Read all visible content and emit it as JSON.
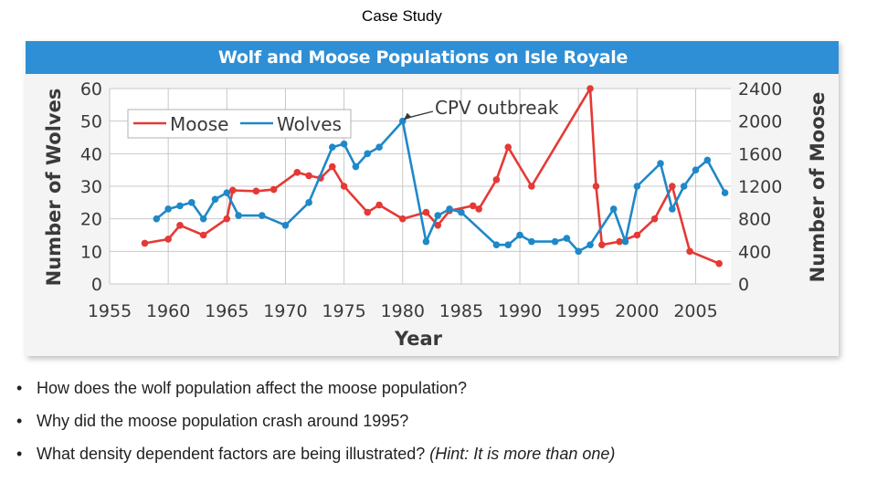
{
  "slide": {
    "title": "Case Study",
    "questions": [
      "How does the wolf population affect the moose population?",
      "Why did the moose population crash around 1995?",
      "What density dependent factors are being illustrated?"
    ],
    "hint": "(Hint: It is more than one)",
    "bullet_glyph": "•"
  },
  "chart_data": {
    "type": "line",
    "title": "Wolf and  Moose Populations on Isle Royale",
    "xlabel": "Year",
    "ylabel_left": "Number of Wolves",
    "ylabel_right": "Number of Moose",
    "xlim": [
      1955,
      2008
    ],
    "x_ticks": [
      1955,
      1960,
      1965,
      1970,
      1975,
      1980,
      1985,
      1990,
      1995,
      2000,
      2005
    ],
    "ylim_left": [
      0,
      60
    ],
    "y_ticks_left": [
      0,
      10,
      20,
      30,
      40,
      50,
      60
    ],
    "ylim_right": [
      0,
      2400
    ],
    "y_ticks_right": [
      0,
      400,
      800,
      1200,
      1600,
      2000,
      2400
    ],
    "grid": true,
    "legend_position": "top-left",
    "annotation": {
      "text": "CPV outbreak",
      "x": 1980,
      "y": 50,
      "axis": "left"
    },
    "series": [
      {
        "name": "Moose",
        "axis": "right",
        "color": "#e53935",
        "x": [
          1958,
          1960,
          1961,
          1963,
          1965,
          1965.5,
          1967.5,
          1969,
          1971,
          1972,
          1973,
          1974,
          1975,
          1977,
          1978,
          1980,
          1982,
          1983,
          1984,
          1986,
          1986.5,
          1988,
          1989,
          1991,
          1996,
          1996.5,
          1997,
          1998.5,
          2000,
          2001.5,
          2003,
          2004.5,
          2007
        ],
        "values": [
          500,
          550,
          720,
          600,
          800,
          1150,
          1140,
          1160,
          1370,
          1330,
          1300,
          1440,
          1200,
          880,
          970,
          800,
          880,
          720,
          900,
          960,
          920,
          1280,
          1680,
          1200,
          2400,
          1200,
          480,
          520,
          600,
          800,
          1200,
          400,
          250
        ]
      },
      {
        "name": "Wolves",
        "axis": "left",
        "color": "#1e88c8",
        "x": [
          1959,
          1960,
          1961,
          1962,
          1963,
          1964,
          1965,
          1966,
          1968,
          1970,
          1972,
          1974,
          1975,
          1976,
          1977,
          1978,
          1980,
          1982,
          1983,
          1984,
          1985,
          1988,
          1989,
          1990,
          1991,
          1993,
          1994,
          1995,
          1996,
          1998,
          1999,
          2000,
          2002,
          2003,
          2004,
          2005,
          2006,
          2007.5
        ],
        "values": [
          20,
          23,
          24,
          25,
          20,
          26,
          28,
          21,
          21,
          18,
          25,
          42,
          43,
          36,
          40,
          42,
          50,
          13,
          21,
          23,
          22,
          12,
          12,
          15,
          13,
          13,
          14,
          10,
          12,
          23,
          13,
          30,
          37,
          23,
          30,
          35,
          38,
          28
        ]
      }
    ]
  }
}
